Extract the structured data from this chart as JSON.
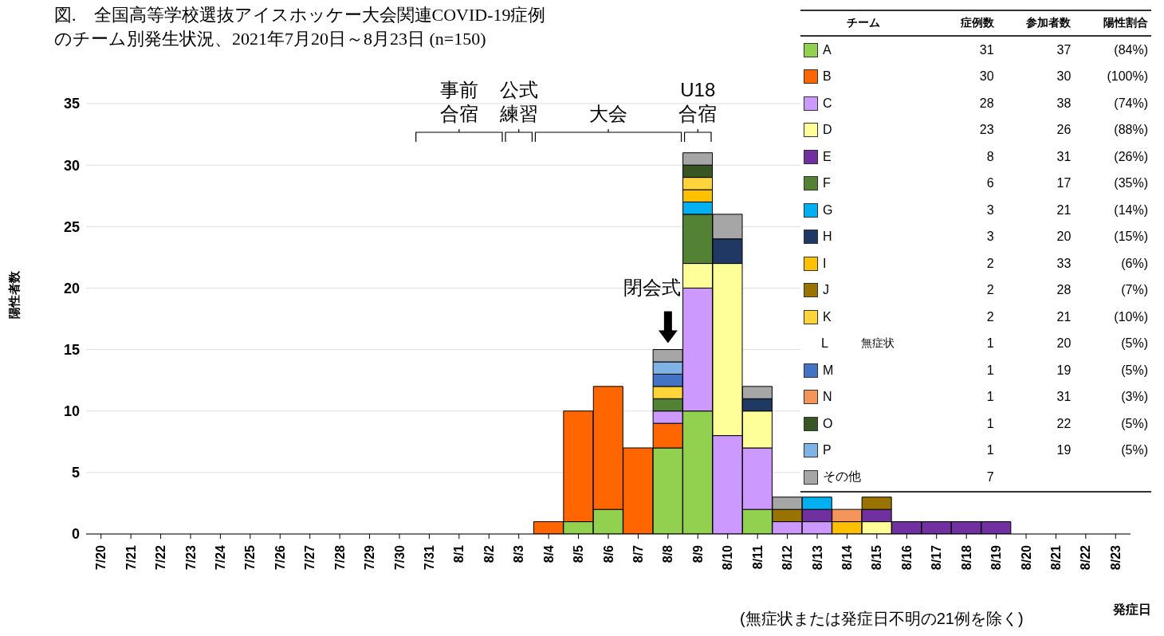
{
  "chart_data": {
    "type": "bar",
    "title": "図.　全国高等学校選抜アイスホッケー大会関連COVID-19症例のチーム別発生状況、2021年7月20日～8月23日 (n=150)",
    "xlabel": "発症日",
    "ylabel": "陽性者数",
    "legend": "top right",
    "stacked": true,
    "grid": "y",
    "ylim": [
      0,
      35
    ],
    "yticks": [
      0,
      5,
      10,
      15,
      20,
      25,
      30,
      35
    ],
    "categories": [
      "7/20",
      "7/21",
      "7/22",
      "7/23",
      "7/24",
      "7/25",
      "7/26",
      "7/27",
      "7/28",
      "7/29",
      "7/30",
      "7/31",
      "8/1",
      "8/2",
      "8/3",
      "8/4",
      "8/5",
      "8/6",
      "8/7",
      "8/8",
      "8/9",
      "8/10",
      "8/11",
      "8/12",
      "8/13",
      "8/14",
      "8/15",
      "8/16",
      "8/17",
      "8/18",
      "8/19",
      "8/20",
      "8/21",
      "8/22",
      "8/23"
    ],
    "series": [
      {
        "name": "A",
        "color": "#92d050",
        "values": [
          null,
          null,
          null,
          null,
          null,
          null,
          null,
          null,
          null,
          null,
          null,
          null,
          null,
          null,
          null,
          null,
          1,
          2,
          null,
          7,
          10,
          null,
          2,
          null,
          null,
          null,
          null,
          null,
          null,
          null,
          null,
          null,
          null,
          null,
          null
        ]
      },
      {
        "name": "B",
        "color": "#ff6600",
        "values": [
          null,
          null,
          null,
          null,
          null,
          null,
          null,
          null,
          null,
          null,
          null,
          null,
          null,
          null,
          null,
          1,
          9,
          10,
          7,
          2,
          null,
          null,
          null,
          null,
          null,
          null,
          null,
          null,
          null,
          null,
          null,
          null,
          null,
          null,
          null
        ]
      },
      {
        "name": "C",
        "color": "#cc99ff",
        "values": [
          null,
          null,
          null,
          null,
          null,
          null,
          null,
          null,
          null,
          null,
          null,
          null,
          null,
          null,
          null,
          null,
          null,
          null,
          null,
          1,
          10,
          8,
          5,
          1,
          1,
          null,
          null,
          null,
          null,
          null,
          null,
          null,
          null,
          null,
          null
        ]
      },
      {
        "name": "D",
        "color": "#ffff99",
        "values": [
          null,
          null,
          null,
          null,
          null,
          null,
          null,
          null,
          null,
          null,
          null,
          null,
          null,
          null,
          null,
          null,
          null,
          null,
          null,
          null,
          2,
          14,
          3,
          null,
          null,
          null,
          1,
          null,
          null,
          null,
          null,
          null,
          null,
          null,
          null
        ]
      },
      {
        "name": "E",
        "color": "#7030a0",
        "values": [
          null,
          null,
          null,
          null,
          null,
          null,
          null,
          null,
          null,
          null,
          null,
          null,
          null,
          null,
          null,
          null,
          null,
          null,
          null,
          null,
          null,
          null,
          null,
          null,
          1,
          null,
          1,
          1,
          1,
          1,
          1,
          null,
          null,
          null,
          null
        ]
      },
      {
        "name": "F",
        "color": "#548235",
        "values": [
          null,
          null,
          null,
          null,
          null,
          null,
          null,
          null,
          null,
          null,
          null,
          null,
          null,
          null,
          null,
          null,
          null,
          null,
          null,
          1,
          4,
          null,
          null,
          null,
          null,
          null,
          null,
          null,
          null,
          null,
          null,
          null,
          null,
          null,
          null
        ]
      },
      {
        "name": "G",
        "color": "#00b0f0",
        "values": [
          null,
          null,
          null,
          null,
          null,
          null,
          null,
          null,
          null,
          null,
          null,
          null,
          null,
          null,
          null,
          null,
          null,
          null,
          null,
          null,
          1,
          null,
          null,
          null,
          1,
          null,
          null,
          null,
          null,
          null,
          null,
          null,
          null,
          null,
          null
        ]
      },
      {
        "name": "H",
        "color": "#203864",
        "values": [
          null,
          null,
          null,
          null,
          null,
          null,
          null,
          null,
          null,
          null,
          null,
          null,
          null,
          null,
          null,
          null,
          null,
          null,
          null,
          null,
          null,
          2,
          1,
          null,
          null,
          null,
          null,
          null,
          null,
          null,
          null,
          null,
          null,
          null,
          null
        ]
      },
      {
        "name": "I",
        "color": "#ffc000",
        "values": [
          null,
          null,
          null,
          null,
          null,
          null,
          null,
          null,
          null,
          null,
          null,
          null,
          null,
          null,
          null,
          null,
          null,
          null,
          null,
          null,
          1,
          null,
          null,
          null,
          null,
          1,
          null,
          null,
          null,
          null,
          null,
          null,
          null,
          null,
          null
        ]
      },
      {
        "name": "J",
        "color": "#997300",
        "values": [
          null,
          null,
          null,
          null,
          null,
          null,
          null,
          null,
          null,
          null,
          null,
          null,
          null,
          null,
          null,
          null,
          null,
          null,
          null,
          null,
          null,
          null,
          null,
          1,
          null,
          null,
          1,
          null,
          null,
          null,
          null,
          null,
          null,
          null,
          null
        ]
      },
      {
        "name": "K",
        "color": "#ffd43b",
        "values": [
          null,
          null,
          null,
          null,
          null,
          null,
          null,
          null,
          null,
          null,
          null,
          null,
          null,
          null,
          null,
          null,
          null,
          null,
          null,
          1,
          1,
          null,
          null,
          null,
          null,
          null,
          null,
          null,
          null,
          null,
          null,
          null,
          null,
          null,
          null
        ]
      },
      {
        "name": "L",
        "values": [
          null,
          null,
          null,
          null,
          null,
          null,
          null,
          null,
          null,
          null,
          null,
          null,
          null,
          null,
          null,
          null,
          null,
          null,
          null,
          null,
          null,
          null,
          null,
          null,
          null,
          null,
          null,
          null,
          null,
          null,
          null,
          null,
          null,
          null,
          null
        ]
      },
      {
        "name": "M",
        "color": "#4472c4",
        "values": [
          null,
          null,
          null,
          null,
          null,
          null,
          null,
          null,
          null,
          null,
          null,
          null,
          null,
          null,
          null,
          null,
          null,
          null,
          null,
          1,
          null,
          null,
          null,
          null,
          null,
          null,
          null,
          null,
          null,
          null,
          null,
          null,
          null,
          null,
          null
        ]
      },
      {
        "name": "N",
        "color": "#f4965a",
        "values": [
          null,
          null,
          null,
          null,
          null,
          null,
          null,
          null,
          null,
          null,
          null,
          null,
          null,
          null,
          null,
          null,
          null,
          null,
          null,
          null,
          null,
          null,
          null,
          null,
          null,
          1,
          null,
          null,
          null,
          null,
          null,
          null,
          null,
          null,
          null
        ]
      },
      {
        "name": "O",
        "color": "#375623",
        "values": [
          null,
          null,
          null,
          null,
          null,
          null,
          null,
          null,
          null,
          null,
          null,
          null,
          null,
          null,
          null,
          null,
          null,
          null,
          null,
          null,
          1,
          null,
          null,
          null,
          null,
          null,
          null,
          null,
          null,
          null,
          null,
          null,
          null,
          null,
          null
        ]
      },
      {
        "name": "P",
        "color": "#7fb2e5",
        "values": [
          null,
          null,
          null,
          null,
          null,
          null,
          null,
          null,
          null,
          null,
          null,
          null,
          null,
          null,
          null,
          null,
          null,
          null,
          null,
          1,
          null,
          null,
          null,
          null,
          null,
          null,
          null,
          null,
          null,
          null,
          null,
          null,
          null,
          null,
          null
        ]
      },
      {
        "name": "その他",
        "color": "#a6a6a6",
        "values": [
          null,
          null,
          null,
          null,
          null,
          null,
          null,
          null,
          null,
          null,
          null,
          null,
          null,
          null,
          null,
          null,
          null,
          null,
          null,
          1,
          1,
          2,
          1,
          1,
          null,
          null,
          null,
          null,
          null,
          null,
          null,
          null,
          null,
          null,
          null
        ]
      }
    ],
    "annotations": [
      "(無症状または発症日不明の21例を除く)",
      {
        "text": "閉会式",
        "x": "8/8",
        "y": 15
      },
      "事前合宿",
      "公式練習",
      "大会",
      "U18合宿",
      "チーム",
      "症例数",
      "参加者数",
      "陽性割合",
      "31",
      "37",
      "(84%)",
      "30",
      "30",
      "(100%)",
      "28",
      "38",
      "(74%)",
      "23",
      "26",
      "(88%)",
      "8",
      "31",
      "(26%)",
      "6",
      "17",
      "(35%)",
      "3",
      "21",
      "(14%)",
      "3",
      "20",
      "(15%)",
      "2",
      "33",
      "(6%)",
      "2",
      "28",
      "(7%)",
      "2",
      "21",
      "(10%)",
      "無症状",
      "1",
      "20",
      "(5%)",
      "1",
      "19",
      "(5%)",
      "1",
      "31",
      "(3%)",
      "1",
      "22",
      "(5%)",
      "1",
      "19",
      "(5%)",
      "7"
    ]
  }
}
